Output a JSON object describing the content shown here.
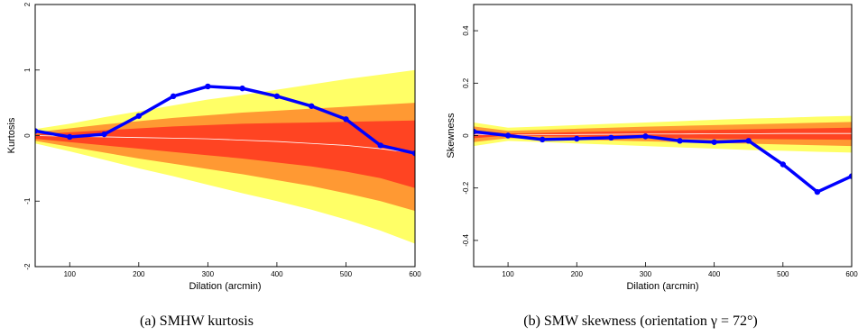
{
  "chart_data": [
    {
      "type": "line",
      "xlabel": "Dilation (arcmin)",
      "ylabel": "Kurtosis",
      "caption": "(a)  SMHW kurtosis",
      "xlim": [
        50,
        600
      ],
      "ylim": [
        -2,
        2
      ],
      "xticks": [
        100,
        200,
        300,
        400,
        500,
        600
      ],
      "yticks": [
        -2,
        -1,
        0,
        1,
        2
      ],
      "x": [
        50,
        100,
        150,
        200,
        250,
        300,
        350,
        400,
        450,
        500,
        550,
        600
      ],
      "series": [
        {
          "name": "",
          "color": "#0000ff",
          "values": [
            0.07,
            -0.02,
            0.02,
            0.3,
            0.6,
            0.75,
            0.72,
            0.6,
            0.45,
            0.25,
            -0.15,
            -0.27
          ]
        }
      ],
      "bands": [
        {
          "color": "#ffff66",
          "upper": [
            0.1,
            0.18,
            0.28,
            0.37,
            0.46,
            0.55,
            0.62,
            0.7,
            0.78,
            0.86,
            0.93,
            1.0
          ],
          "lower": [
            -0.12,
            -0.24,
            -0.37,
            -0.5,
            -0.62,
            -0.75,
            -0.88,
            -1.0,
            -1.13,
            -1.28,
            -1.45,
            -1.65
          ]
        },
        {
          "color": "#ff9933",
          "upper": [
            0.05,
            0.11,
            0.17,
            0.22,
            0.27,
            0.31,
            0.35,
            0.38,
            0.41,
            0.44,
            0.47,
            0.5
          ]
        },
        {
          "color": "#ff4422",
          "upper": [
            0.02,
            0.05,
            0.08,
            0.11,
            0.14,
            0.16,
            0.18,
            0.19,
            0.2,
            0.21,
            0.22,
            0.23
          ]
        }
      ],
      "lower_band_2": [
        -0.08,
        -0.17,
        -0.26,
        -0.35,
        -0.43,
        -0.51,
        -0.59,
        -0.68,
        -0.77,
        -0.88,
        -1.0,
        -1.15
      ],
      "lower_band_3": [
        -0.05,
        -0.1,
        -0.15,
        -0.2,
        -0.25,
        -0.3,
        -0.35,
        -0.41,
        -0.47,
        -0.55,
        -0.65,
        -0.8
      ],
      "mean_line": [
        0.0,
        -0.01,
        -0.02,
        -0.03,
        -0.04,
        -0.05,
        -0.07,
        -0.09,
        -0.12,
        -0.15,
        -0.2,
        -0.27
      ],
      "grid": false
    },
    {
      "type": "line",
      "xlabel": "Dilation (arcmin)",
      "ylabel": "Skewness",
      "caption": "(b)  SMW skewness (orientation γ = 72°)",
      "xlim": [
        50,
        600
      ],
      "ylim": [
        -0.5,
        0.5
      ],
      "xticks": [
        100,
        200,
        300,
        400,
        500,
        600
      ],
      "yticks": [
        -0.4,
        -0.2,
        0,
        0.2,
        0.4
      ],
      "x": [
        50,
        100,
        150,
        200,
        250,
        300,
        350,
        400,
        450,
        500,
        550,
        600
      ],
      "series": [
        {
          "name": "",
          "color": "#0000ff",
          "values": [
            0.015,
            0.0,
            -0.015,
            -0.012,
            -0.008,
            -0.003,
            -0.02,
            -0.025,
            -0.02,
            -0.11,
            -0.215,
            -0.155
          ]
        }
      ],
      "bands": [
        {
          "color": "#ffff66",
          "upper": [
            0.05,
            0.03,
            0.035,
            0.04,
            0.045,
            0.05,
            0.055,
            0.06,
            0.065,
            0.068,
            0.072,
            0.075
          ],
          "lower": [
            -0.04,
            -0.02,
            -0.025,
            -0.03,
            -0.035,
            -0.04,
            -0.045,
            -0.05,
            -0.055,
            -0.058,
            -0.062,
            -0.065
          ]
        },
        {
          "color": "#ff9933",
          "upper": [
            0.035,
            0.018,
            0.022,
            0.026,
            0.03,
            0.034,
            0.037,
            0.04,
            0.043,
            0.046,
            0.049,
            0.052
          ]
        },
        {
          "color": "#ff4422",
          "upper": [
            0.02,
            0.008,
            0.01,
            0.013,
            0.016,
            0.018,
            0.02,
            0.022,
            0.024,
            0.026,
            0.028,
            0.03
          ]
        }
      ],
      "lower_band_2": [
        -0.025,
        -0.01,
        -0.013,
        -0.016,
        -0.019,
        -0.022,
        -0.025,
        -0.028,
        -0.031,
        -0.034,
        -0.037,
        -0.04
      ],
      "lower_band_3": [
        -0.01,
        0.0,
        -0.002,
        -0.004,
        -0.006,
        -0.008,
        -0.01,
        -0.012,
        -0.013,
        -0.014,
        -0.015,
        -0.016
      ],
      "mean_line": [
        0.005,
        0.002,
        0.003,
        0.004,
        0.005,
        0.006,
        0.006,
        0.007,
        0.007,
        0.008,
        0.008,
        0.008
      ],
      "grid": false
    }
  ]
}
